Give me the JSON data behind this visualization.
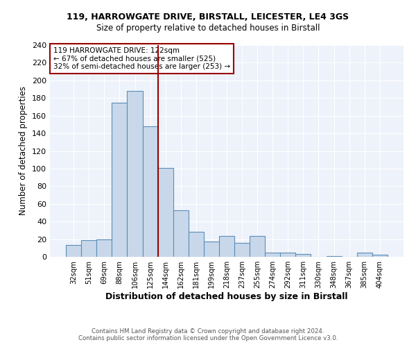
{
  "title1": "119, HARROWGATE DRIVE, BIRSTALL, LEICESTER, LE4 3GS",
  "title2": "Size of property relative to detached houses in Birstall",
  "xlabel": "Distribution of detached houses by size in Birstall",
  "ylabel": "Number of detached properties",
  "categories": [
    "32sqm",
    "51sqm",
    "69sqm",
    "88sqm",
    "106sqm",
    "125sqm",
    "144sqm",
    "162sqm",
    "181sqm",
    "199sqm",
    "218sqm",
    "237sqm",
    "255sqm",
    "274sqm",
    "292sqm",
    "311sqm",
    "330sqm",
    "348sqm",
    "367sqm",
    "385sqm",
    "404sqm"
  ],
  "values": [
    13,
    19,
    20,
    175,
    188,
    148,
    101,
    53,
    28,
    17,
    24,
    16,
    24,
    5,
    5,
    3,
    0,
    1,
    0,
    5,
    2
  ],
  "bar_color": "#c8d8ea",
  "bar_edge_color": "#5b8db8",
  "vline_x_index": 5,
  "vline_color": "#990000",
  "annotation_line1": "119 HARROWGATE DRIVE: 122sqm",
  "annotation_line2": "← 67% of detached houses are smaller (525)",
  "annotation_line3": "32% of semi-detached houses are larger (253) →",
  "annotation_box_color": "white",
  "annotation_box_edge_color": "#990000",
  "ylim": [
    0,
    240
  ],
  "yticks": [
    0,
    20,
    40,
    60,
    80,
    100,
    120,
    140,
    160,
    180,
    200,
    220,
    240
  ],
  "bg_color": "#eef2fa",
  "grid_color": "white",
  "footer1": "Contains HM Land Registry data © Crown copyright and database right 2024.",
  "footer2": "Contains public sector information licensed under the Open Government Licence v3.0."
}
